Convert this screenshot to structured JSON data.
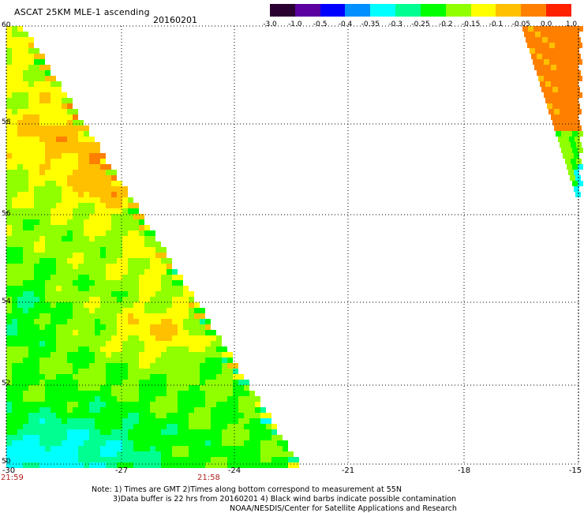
{
  "header": {
    "title": "ASCAT 25KM MLE-1 ascending",
    "date": "20160201"
  },
  "colorbar": {
    "labels": [
      "-3.0",
      "-1.0",
      "-0.5",
      "-0.4",
      "-0.35",
      "-0.3",
      "-0.25",
      "-0.2",
      "-0.15",
      "-0.1",
      "-0.05",
      "0.0",
      "1.0"
    ],
    "colors": [
      "#2a0030",
      "#5a00a0",
      "#0000ff",
      "#0090ff",
      "#00ffff",
      "#00ff90",
      "#00ff00",
      "#90ff00",
      "#ffff00",
      "#ffc000",
      "#ff8000",
      "#ff2000"
    ]
  },
  "map": {
    "lat_labels": [
      "60",
      "58",
      "56",
      "54",
      "52",
      "50"
    ],
    "lon_labels": [
      "-30",
      "-27",
      "-24",
      "-21",
      "-18",
      "-15"
    ],
    "extent": {
      "lon_min": -30,
      "lon_max": -15,
      "lat_min": 50,
      "lat_max": 60
    }
  },
  "times": {
    "left": "21:59",
    "mid": "21:58"
  },
  "footer": {
    "line1": "Note: 1) Times are GMT 2)Times along bottom correspond to measurement at 55N",
    "line2": "3)Data buffer is 22 hrs from 20160201 4) Black wind barbs indicate possible contamination",
    "line3": "NOAA/NESDIS/Center for Satellite Applications and Research"
  }
}
